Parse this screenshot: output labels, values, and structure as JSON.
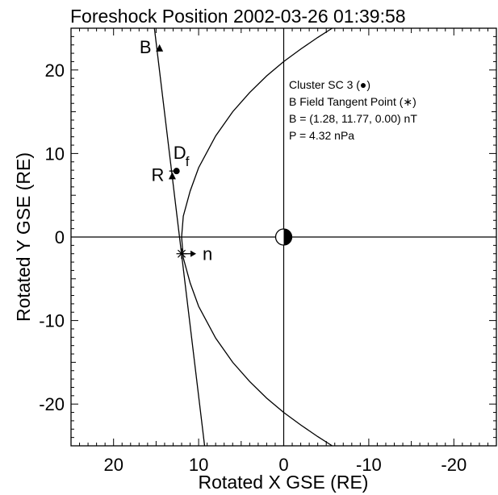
{
  "chart_data": {
    "type": "line",
    "title": "Foreshock Position 2002-03-26 01:39:58",
    "xlabel": "Rotated X GSE (RE)",
    "ylabel": "Rotated Y GSE (RE)",
    "xlim": [
      25,
      -25
    ],
    "ylim": [
      -25,
      25
    ],
    "x_ticks": [
      20,
      10,
      0,
      -10,
      -20
    ],
    "y_ticks": [
      20,
      10,
      0,
      -10,
      -20
    ],
    "grid": false,
    "annotations": [
      "Cluster SC 3 (●)",
      "B Field Tangent Point (∗)",
      "B = (1.28, 11.77, 0.00) nT",
      "P = 4.32 nPa"
    ],
    "series": [
      {
        "type": "line",
        "x": [
          15.2,
          9.3
        ],
        "y": [
          25,
          -25
        ]
      },
      {
        "type": "line",
        "x": [
          -5.7,
          -4.0,
          -2.0,
          0.0,
          2.0,
          4.0,
          6.0,
          8.0,
          10.0,
          11.0,
          11.8,
          12.0,
          11.8,
          11.0,
          10.0,
          8.0,
          6.0,
          4.0,
          2.0,
          0.0,
          -2.0,
          -4.0,
          -5.7
        ],
        "y": [
          25.0,
          23.9,
          22.5,
          21.0,
          19.3,
          17.3,
          15.0,
          12.1,
          8.3,
          5.5,
          2.5,
          0.0,
          -2.5,
          -5.5,
          -8.3,
          -12.1,
          -15.0,
          -17.3,
          -19.3,
          -21.0,
          -22.5,
          -23.9,
          -25.0
        ]
      }
    ],
    "points": [
      {
        "label": "B",
        "x": 14.6,
        "y": 22.6,
        "marker": "triangle-up"
      },
      {
        "label": "R",
        "x": 13.1,
        "y": 7.3,
        "marker": "triangle-up"
      },
      {
        "label": "D",
        "sub": "f",
        "x": 12.6,
        "y": 7.9,
        "marker": "dot"
      },
      {
        "label": "n",
        "x": 12.0,
        "y": -2.0,
        "marker": "star"
      }
    ],
    "earth": {
      "x": 0,
      "y": 0
    }
  }
}
